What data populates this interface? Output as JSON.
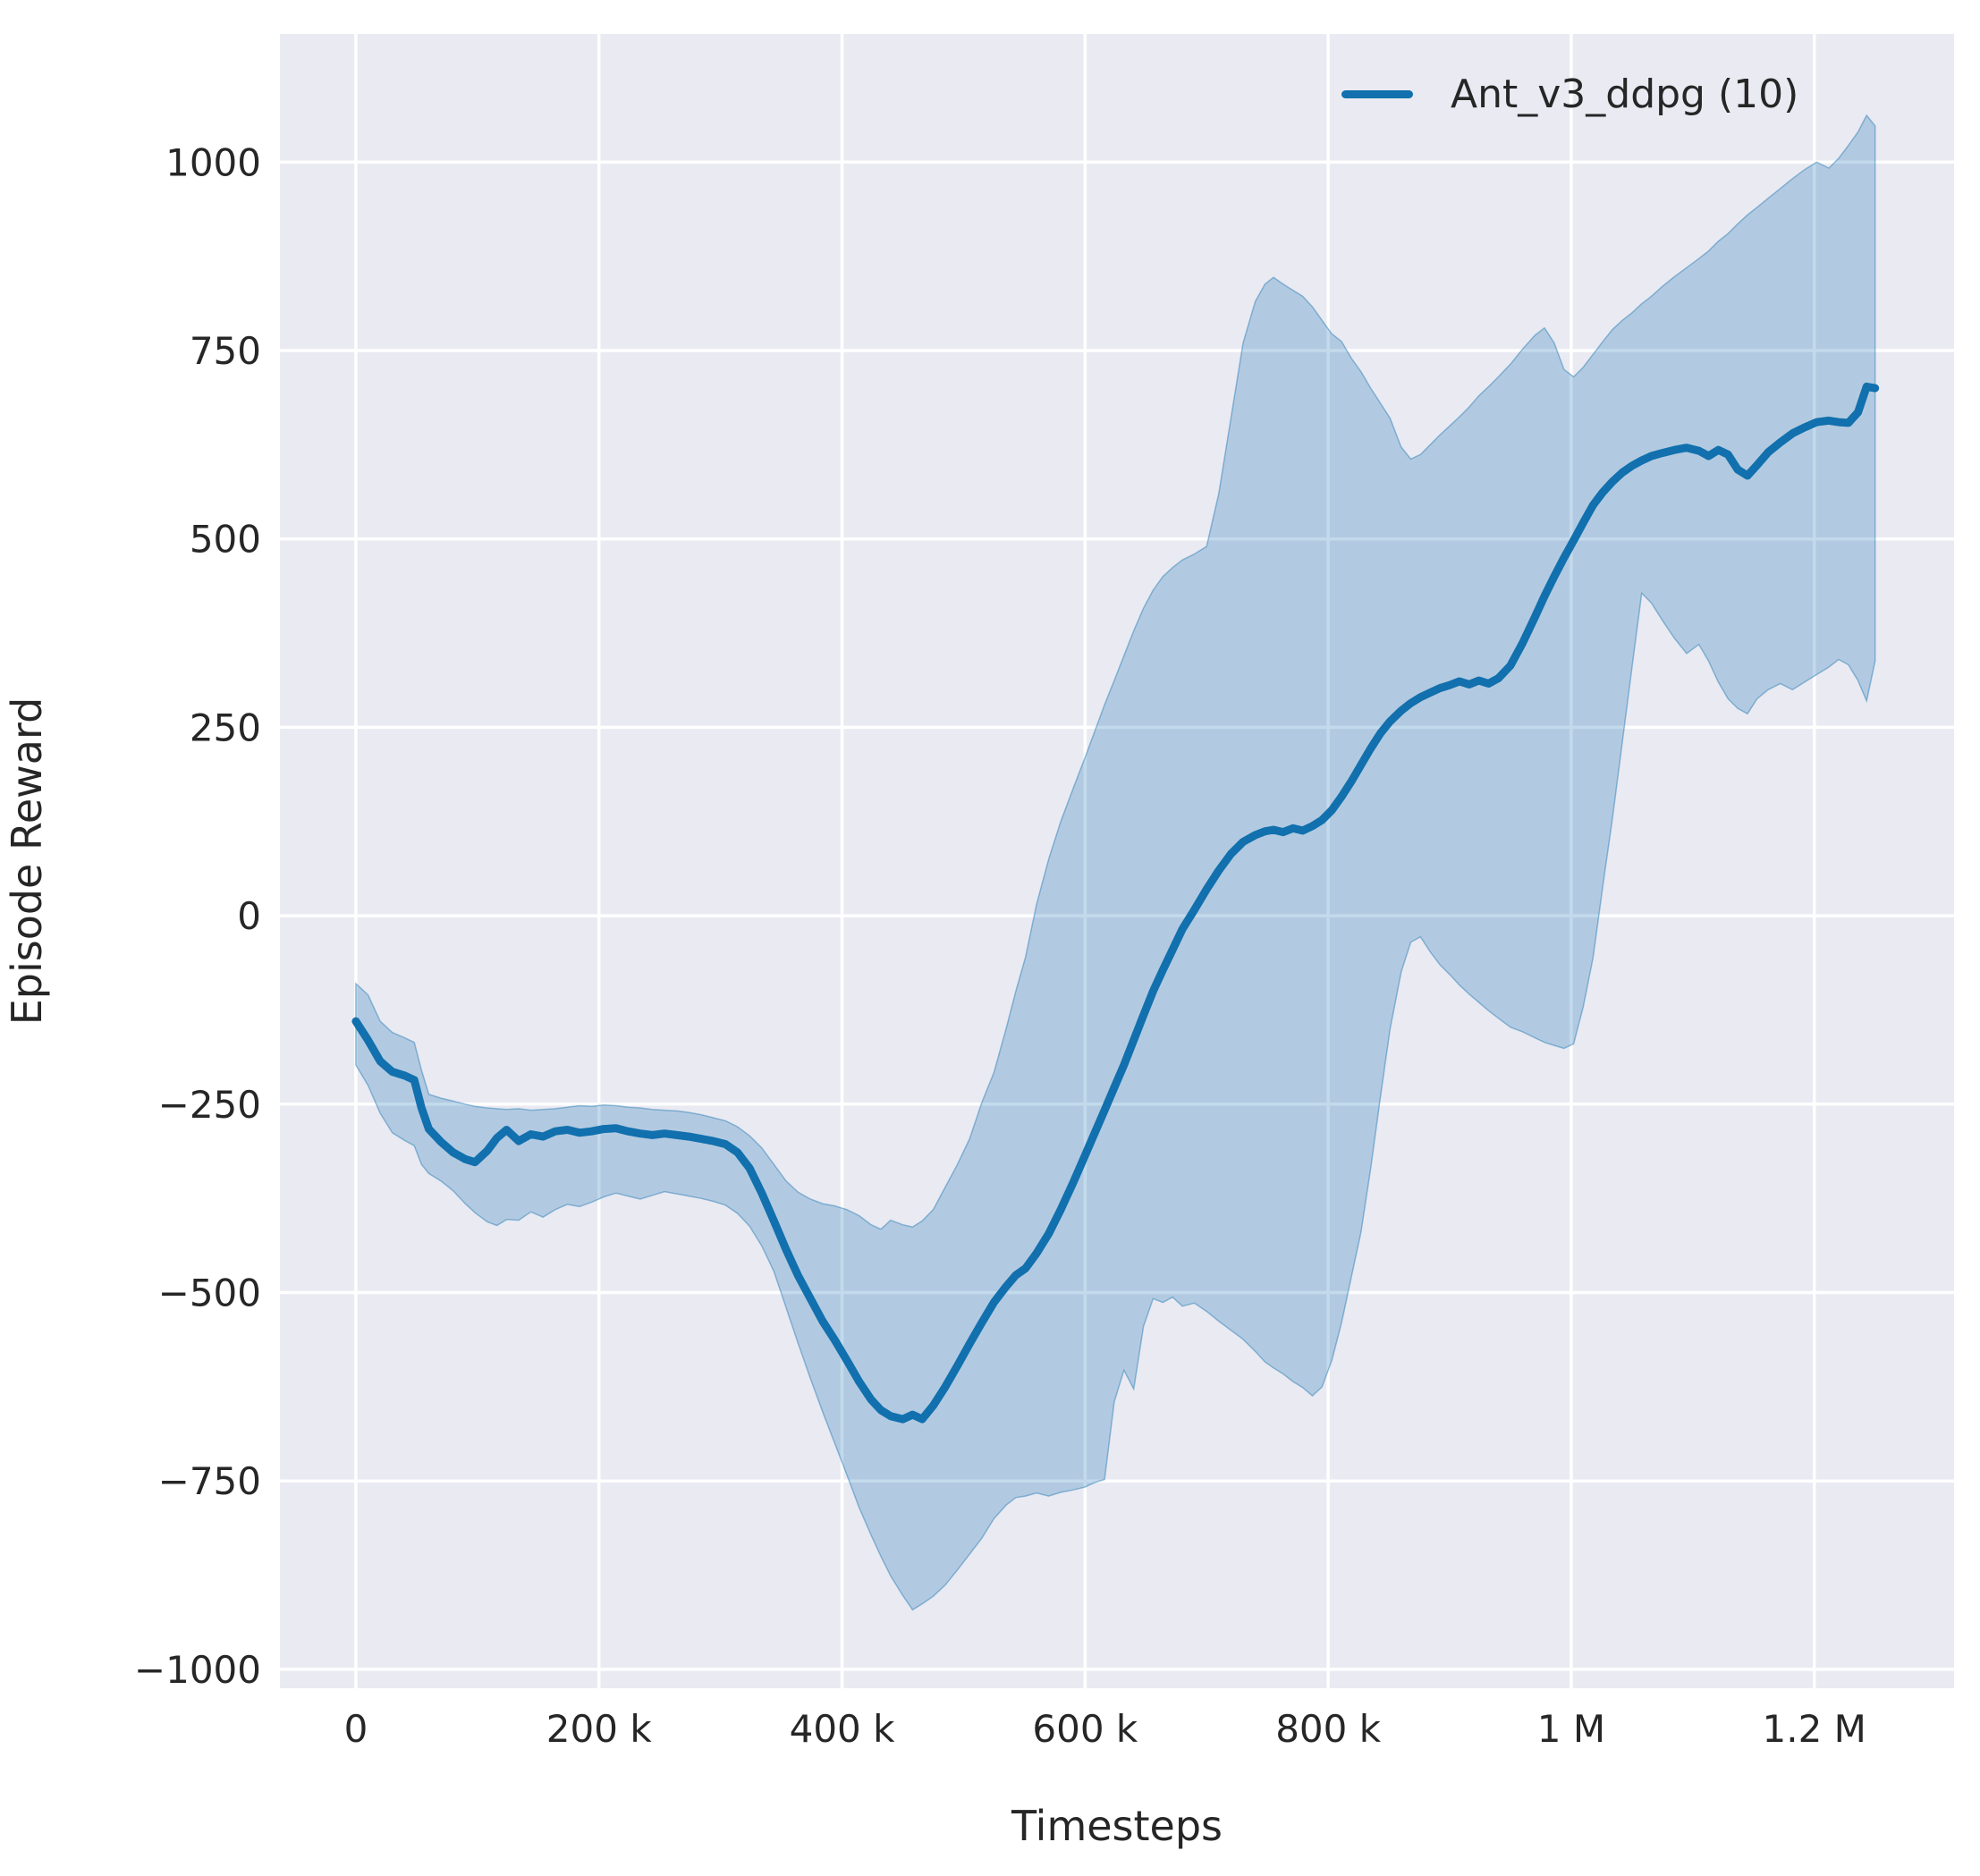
{
  "figure": {
    "background": "#ffffff",
    "plot_background": "#eaeaf2",
    "grid_color": "#ffffff",
    "text_color": "#262626"
  },
  "legend": {
    "label": "Ant_v3_ddpg (10)",
    "line_color": "#1170ad"
  },
  "axes": {
    "x_label": "Timesteps",
    "y_label": "Episode Reward"
  },
  "chart_data": {
    "type": "line",
    "title": "",
    "xlabel": "Timesteps",
    "ylabel": "Episode Reward",
    "series_name": "Ant_v3_ddpg (10)",
    "line_color": "#1170ad",
    "band_color": "#1f77b4",
    "band_opacity": 0.27,
    "grid": true,
    "legend_position": "upper right",
    "x_unit": "timesteps, stored in thousands (1 = 1000 steps)",
    "xlim": [
      -62.5,
      1315
    ],
    "ylim": [
      -1025,
      1170
    ],
    "x_ticks": {
      "values": [
        0,
        200,
        400,
        600,
        800,
        1000,
        1200
      ],
      "labels": [
        "0",
        "200 k",
        "400 k",
        "600 k",
        "800 k",
        "1 M",
        "1.2 M"
      ]
    },
    "y_ticks": {
      "values": [
        1000,
        750,
        500,
        250,
        0,
        -250,
        -500,
        -750,
        -1000
      ],
      "labels": [
        "1000",
        "750",
        "500",
        "250",
        "0",
        "−250",
        "−500",
        "−750",
        "−1000"
      ]
    },
    "points_format": [
      "x_thousand_steps",
      "band_low",
      "mean_episode_reward",
      "band_high"
    ],
    "points": [
      [
        0,
        -198,
        -140,
        -90
      ],
      [
        10,
        -225,
        -165,
        -105
      ],
      [
        20,
        -262,
        -193,
        -140
      ],
      [
        30,
        -288,
        -207,
        -155
      ],
      [
        40,
        -298,
        -212,
        -162
      ],
      [
        48,
        -305,
        -218,
        -168
      ],
      [
        54,
        -330,
        -255,
        -205
      ],
      [
        60,
        -342,
        -283,
        -237
      ],
      [
        70,
        -352,
        -300,
        -242
      ],
      [
        80,
        -365,
        -314,
        -246
      ],
      [
        90,
        -382,
        -323,
        -250
      ],
      [
        98,
        -394,
        -327,
        -253
      ],
      [
        108,
        -406,
        -312,
        -255
      ],
      [
        116,
        -411,
        -295,
        -256
      ],
      [
        124,
        -403,
        -284,
        -257
      ],
      [
        134,
        -404,
        -299,
        -256
      ],
      [
        144,
        -393,
        -290,
        -258
      ],
      [
        154,
        -400,
        -293,
        -257
      ],
      [
        164,
        -390,
        -286,
        -256
      ],
      [
        174,
        -383,
        -284,
        -254
      ],
      [
        184,
        -386,
        -288,
        -252
      ],
      [
        194,
        -380,
        -286,
        -253
      ],
      [
        204,
        -373,
        -283,
        -251
      ],
      [
        214,
        -368,
        -282,
        -252
      ],
      [
        224,
        -372,
        -286,
        -254
      ],
      [
        234,
        -376,
        -289,
        -255
      ],
      [
        244,
        -371,
        -291,
        -257
      ],
      [
        254,
        -366,
        -289,
        -258
      ],
      [
        264,
        -369,
        -291,
        -259
      ],
      [
        274,
        -372,
        -293,
        -261
      ],
      [
        284,
        -375,
        -296,
        -264
      ],
      [
        294,
        -379,
        -299,
        -268
      ],
      [
        304,
        -384,
        -303,
        -272
      ],
      [
        314,
        -395,
        -314,
        -280
      ],
      [
        324,
        -412,
        -335,
        -292
      ],
      [
        334,
        -438,
        -368,
        -308
      ],
      [
        344,
        -472,
        -405,
        -330
      ],
      [
        354,
        -520,
        -443,
        -352
      ],
      [
        364,
        -568,
        -478,
        -367
      ],
      [
        374,
        -614,
        -508,
        -376
      ],
      [
        384,
        -658,
        -538,
        -382
      ],
      [
        394,
        -700,
        -563,
        -385
      ],
      [
        404,
        -742,
        -590,
        -390
      ],
      [
        414,
        -785,
        -618,
        -398
      ],
      [
        424,
        -822,
        -642,
        -410
      ],
      [
        432,
        -850,
        -656,
        -416
      ],
      [
        440,
        -876,
        -664,
        -404
      ],
      [
        450,
        -902,
        -668,
        -410
      ],
      [
        458,
        -921,
        -662,
        -413
      ],
      [
        466,
        -913,
        -668,
        -405
      ],
      [
        475,
        -903,
        -650,
        -390
      ],
      [
        485,
        -888,
        -625,
        -360
      ],
      [
        495,
        -868,
        -597,
        -330
      ],
      [
        505,
        -847,
        -568,
        -296
      ],
      [
        515,
        -826,
        -540,
        -248
      ],
      [
        525,
        -800,
        -513,
        -208
      ],
      [
        535,
        -782,
        -492,
        -150
      ],
      [
        543,
        -772,
        -477,
        -100
      ],
      [
        551,
        -770,
        -468,
        -55
      ],
      [
        560,
        -766,
        -448,
        15
      ],
      [
        570,
        -770,
        -422,
        75
      ],
      [
        580,
        -765,
        -390,
        125
      ],
      [
        590,
        -762,
        -355,
        168
      ],
      [
        600,
        -758,
        -318,
        210
      ],
      [
        608,
        -752,
        -288,
        245
      ],
      [
        616,
        -748,
        -258,
        280
      ],
      [
        624,
        -645,
        -228,
        312
      ],
      [
        632,
        -603,
        -198,
        345
      ],
      [
        640,
        -628,
        -165,
        378
      ],
      [
        648,
        -545,
        -132,
        408
      ],
      [
        656,
        -508,
        -100,
        432
      ],
      [
        664,
        -513,
        -72,
        450
      ],
      [
        672,
        -506,
        -45,
        462
      ],
      [
        680,
        -518,
        -18,
        472
      ],
      [
        690,
        -514,
        8,
        480
      ],
      [
        700,
        -525,
        35,
        490
      ],
      [
        710,
        -538,
        60,
        560
      ],
      [
        720,
        -550,
        82,
        660
      ],
      [
        730,
        -562,
        98,
        760
      ],
      [
        740,
        -578,
        107,
        815
      ],
      [
        748,
        -592,
        112,
        838
      ],
      [
        755,
        -600,
        114,
        847
      ],
      [
        763,
        -608,
        111,
        838
      ],
      [
        771,
        -618,
        116,
        830
      ],
      [
        779,
        -626,
        113,
        822
      ],
      [
        787,
        -637,
        119,
        808
      ],
      [
        795,
        -625,
        127,
        790
      ],
      [
        803,
        -590,
        140,
        772
      ],
      [
        811,
        -540,
        158,
        762
      ],
      [
        819,
        -480,
        178,
        740
      ],
      [
        827,
        -420,
        200,
        722
      ],
      [
        835,
        -335,
        222,
        700
      ],
      [
        843,
        -240,
        242,
        680
      ],
      [
        851,
        -150,
        258,
        660
      ],
      [
        860,
        -75,
        272,
        622
      ],
      [
        868,
        -35,
        282,
        606
      ],
      [
        876,
        -28,
        290,
        612
      ],
      [
        884,
        -48,
        296,
        625
      ],
      [
        892,
        -65,
        302,
        638
      ],
      [
        900,
        -78,
        306,
        650
      ],
      [
        908,
        -92,
        311,
        662
      ],
      [
        916,
        -104,
        307,
        675
      ],
      [
        924,
        -115,
        312,
        690
      ],
      [
        932,
        -126,
        308,
        702
      ],
      [
        940,
        -136,
        315,
        715
      ],
      [
        950,
        -148,
        332,
        732
      ],
      [
        960,
        -154,
        362,
        752
      ],
      [
        970,
        -162,
        396,
        770
      ],
      [
        978,
        -168,
        424,
        780
      ],
      [
        986,
        -172,
        450,
        760
      ],
      [
        994,
        -176,
        475,
        725
      ],
      [
        1002,
        -170,
        498,
        715
      ],
      [
        1010,
        -120,
        522,
        728
      ],
      [
        1018,
        -55,
        545,
        745
      ],
      [
        1026,
        40,
        562,
        762
      ],
      [
        1034,
        130,
        576,
        778
      ],
      [
        1042,
        230,
        588,
        790
      ],
      [
        1050,
        330,
        597,
        800
      ],
      [
        1058,
        428,
        604,
        812
      ],
      [
        1066,
        415,
        610,
        822
      ],
      [
        1075,
        392,
        614,
        835
      ],
      [
        1085,
        368,
        618,
        848
      ],
      [
        1095,
        348,
        621,
        860
      ],
      [
        1105,
        360,
        617,
        872
      ],
      [
        1113,
        338,
        610,
        882
      ],
      [
        1121,
        310,
        618,
        895
      ],
      [
        1129,
        288,
        612,
        905
      ],
      [
        1137,
        275,
        592,
        918
      ],
      [
        1145,
        268,
        584,
        930
      ],
      [
        1153,
        288,
        598,
        940
      ],
      [
        1162,
        300,
        615,
        952
      ],
      [
        1172,
        308,
        628,
        965
      ],
      [
        1182,
        300,
        640,
        978
      ],
      [
        1192,
        310,
        648,
        990
      ],
      [
        1202,
        320,
        655,
        1000
      ],
      [
        1212,
        330,
        657,
        992
      ],
      [
        1220,
        340,
        655,
        1005
      ],
      [
        1228,
        333,
        654,
        1022
      ],
      [
        1236,
        312,
        668,
        1040
      ],
      [
        1243,
        285,
        702,
        1062
      ],
      [
        1250,
        338,
        700,
        1048
      ]
    ]
  }
}
